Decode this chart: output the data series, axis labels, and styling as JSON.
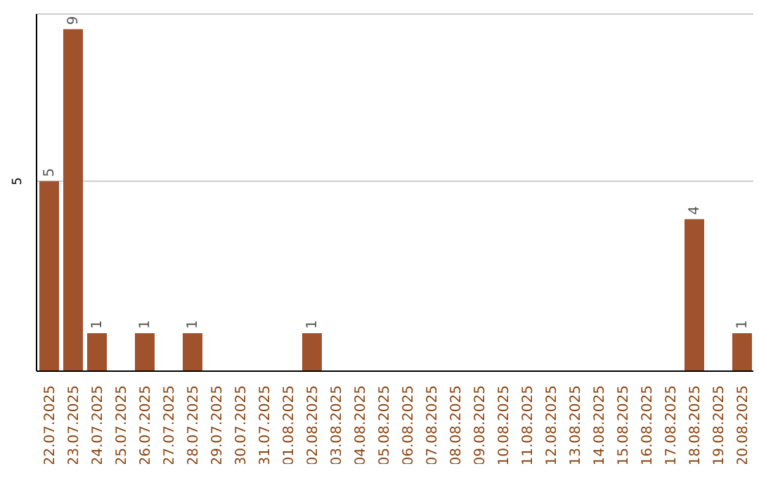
{
  "chart_data": {
    "type": "bar",
    "categories": [
      "22.07.2025",
      "23.07.2025",
      "24.07.2025",
      "25.07.2025",
      "26.07.2025",
      "27.07.2025",
      "28.07.2025",
      "29.07.2025",
      "30.07.2025",
      "31.07.2025",
      "01.08.2025",
      "02.08.2025",
      "03.08.2025",
      "04.08.2025",
      "05.08.2025",
      "06.08.2025",
      "07.08.2025",
      "08.08.2025",
      "09.08.2025",
      "10.08.2025",
      "11.08.2025",
      "12.08.2025",
      "13.08.2025",
      "14.08.2025",
      "15.08.2025",
      "16.08.2025",
      "17.08.2025",
      "18.08.2025",
      "19.08.2025",
      "20.08.2025"
    ],
    "values": [
      5,
      9,
      1,
      0,
      1,
      0,
      1,
      0,
      0,
      0,
      0,
      1,
      0,
      0,
      0,
      0,
      0,
      0,
      0,
      0,
      0,
      0,
      0,
      0,
      0,
      0,
      0,
      4,
      0,
      1
    ],
    "value_labels": [
      "5",
      "9",
      "1",
      null,
      "1",
      null,
      "1",
      null,
      null,
      null,
      null,
      "1",
      null,
      null,
      null,
      null,
      null,
      null,
      null,
      null,
      null,
      null,
      null,
      null,
      null,
      null,
      null,
      "4",
      null,
      "1"
    ],
    "color": "#a0522d",
    "ylim": [
      0,
      9.4
    ],
    "yticks": [
      {
        "value": 0,
        "label": null
      },
      5
    ],
    "grid": "y"
  }
}
